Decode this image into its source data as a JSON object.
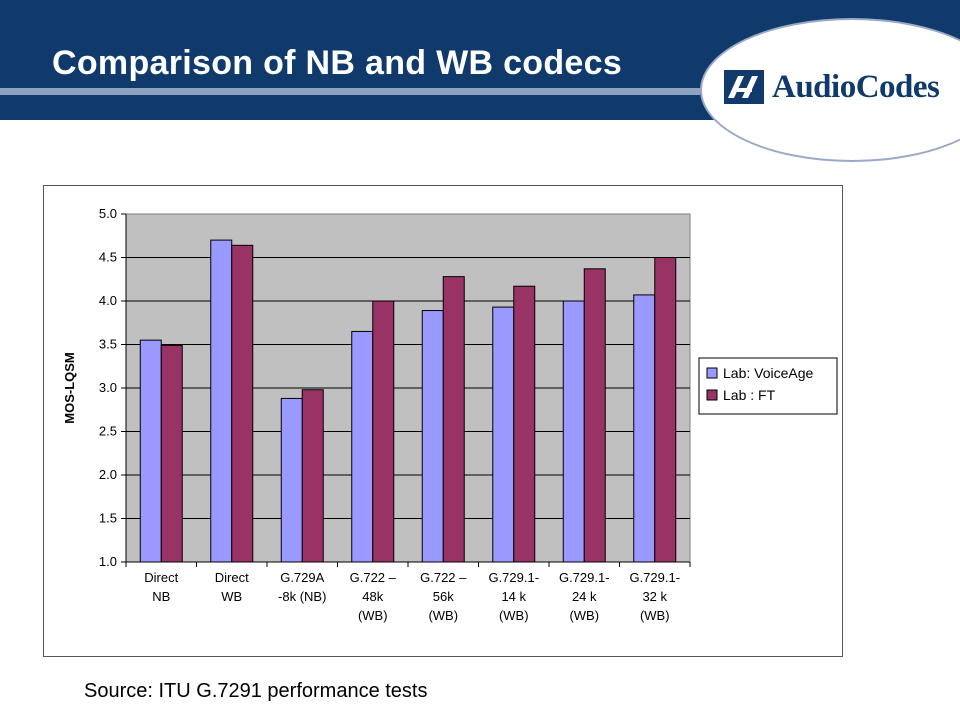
{
  "slide": {
    "title": "Comparison of NB and WB codecs",
    "source": "Source: ITU G.7291 performance tests"
  },
  "logo": {
    "text": "AudioCodes",
    "color": "#0f3a6b"
  },
  "colors": {
    "header": "#0f3a6b",
    "plot_area": "#c0c0c0",
    "series_voiceage": "#9999ff",
    "series_ft": "#993366"
  },
  "chart_data": {
    "type": "bar",
    "title": "",
    "xlabel": "",
    "ylabel": "MOS-LQSM",
    "ylim": [
      1.0,
      5.0
    ],
    "y_ticks": [
      "5.0",
      "4.5",
      "4.0",
      "3.5",
      "3.0",
      "2.5",
      "2.0",
      "1.5",
      "1.0"
    ],
    "grid": true,
    "legend_position": "right",
    "categories": [
      [
        "Direct",
        "NB"
      ],
      [
        "Direct",
        "WB"
      ],
      [
        "G.729A",
        "-8k (NB)"
      ],
      [
        "G.722 –",
        "48k",
        "(WB)"
      ],
      [
        "G.722 –",
        "56k",
        "(WB)"
      ],
      [
        "G.729.1-",
        "14 k",
        "(WB)"
      ],
      [
        "G.729.1-",
        "24 k",
        "(WB)"
      ],
      [
        "G.729.1-",
        "32 k",
        "(WB)"
      ]
    ],
    "series": [
      {
        "name": "Lab: VoiceAge",
        "color": "#9999ff",
        "values": [
          3.55,
          4.7,
          2.88,
          3.65,
          3.89,
          3.93,
          4.0,
          4.07
        ]
      },
      {
        "name": "Lab : FT",
        "color": "#993366",
        "values": [
          3.49,
          4.64,
          2.98,
          4.0,
          4.28,
          4.17,
          4.37,
          4.5
        ]
      }
    ]
  }
}
